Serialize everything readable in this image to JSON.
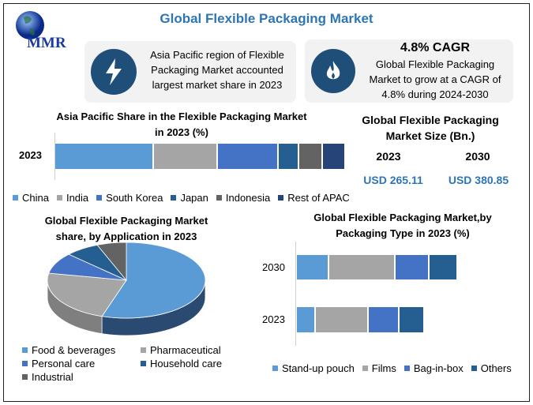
{
  "header": {
    "title": "Global Flexible Packaging Market",
    "logo_text": "MMR"
  },
  "cards": [
    {
      "icon": "lightning-icon",
      "lines": [
        "Asia Pacific region of Flexible",
        "Packaging Market accounted",
        "largest market share in 2023"
      ]
    },
    {
      "icon": "flame-icon",
      "heading": "4.8% CAGR",
      "lines": [
        "Global Flexible Packaging",
        "Market to grow at a CAGR of",
        "4.8% during 2024-2030"
      ]
    }
  ],
  "market_size": {
    "title_lines": [
      "Global Flexible Packaging",
      "Market Size (Bn.)"
    ],
    "years": [
      "2023",
      "2030"
    ],
    "values": [
      "USD 265.11",
      "USD 380.85"
    ],
    "value_color": "#2e75b6"
  },
  "colors": {
    "c1": "#5b9bd5",
    "c2": "#a5a5a5",
    "c3": "#4472c4",
    "c4": "#255e91",
    "c5": "#636363",
    "c6": "#264478"
  },
  "chart_data": [
    {
      "type": "bar",
      "orientation": "horizontal",
      "stacked": true,
      "title_lines": [
        "Asia Pacific Share in the Flexible Packaging  Market",
        "in 2023 (%)"
      ],
      "categories": [
        "2023"
      ],
      "series": [
        {
          "name": "China",
          "values": [
            34
          ]
        },
        {
          "name": "India",
          "values": [
            22
          ]
        },
        {
          "name": "South Korea",
          "values": [
            21
          ]
        },
        {
          "name": "Japan",
          "values": [
            7
          ]
        },
        {
          "name": "Indonesia",
          "values": [
            8
          ]
        },
        {
          "name": "Rest of APAC",
          "values": [
            8
          ]
        }
      ],
      "legend": "bottom"
    },
    {
      "type": "pie",
      "style": "3d",
      "title_lines": [
        "Global Flexible Packaging Market",
        "share, by Application in 2023"
      ],
      "labels": [
        "Food & beverages",
        "Pharmaceutical",
        "Personal care",
        "Household care",
        "Industrial"
      ],
      "values": [
        55,
        23,
        9,
        7,
        6
      ],
      "legend": "bottom"
    },
    {
      "type": "bar",
      "orientation": "horizontal",
      "stacked": true,
      "title_lines": [
        "Global Flexible Packaging Market,by",
        "Packaging Type in 2023 (%)"
      ],
      "categories": [
        "2030",
        "2023"
      ],
      "series": [
        {
          "name": "Stand-up pouch",
          "values": [
            41,
            24
          ]
        },
        {
          "name": "Films",
          "values": [
            84,
            67
          ]
        },
        {
          "name": "Bag-in-box",
          "values": [
            43,
            39
          ]
        },
        {
          "name": "Others",
          "values": [
            36,
            32
          ]
        }
      ],
      "legend": "bottom"
    }
  ]
}
